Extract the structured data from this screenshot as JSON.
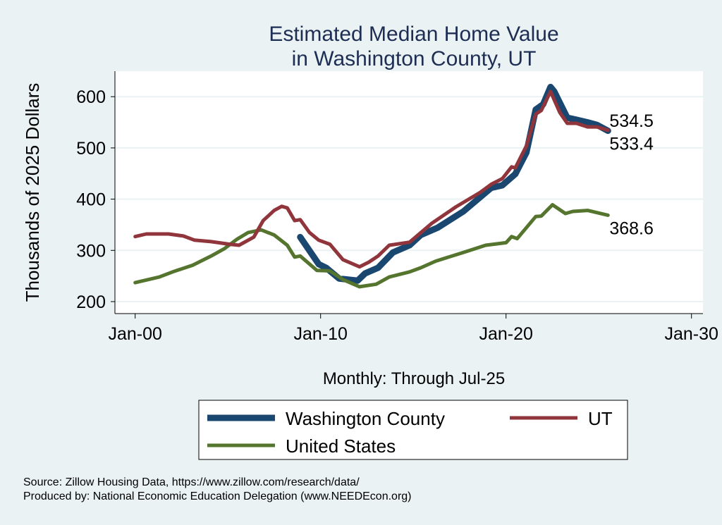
{
  "chart_data": {
    "type": "line",
    "title": [
      "Estimated Median Home Value",
      "in Washington County, UT"
    ],
    "xlabel": "Monthly: Through Jul-25",
    "ylabel": "Thousands of 2025 Dollars",
    "xlim": [
      1998.9,
      2030.6
    ],
    "ylim": [
      185,
      650
    ],
    "x_ticks": [
      {
        "value": 2000,
        "label": "Jan-00"
      },
      {
        "value": 2010,
        "label": "Jan-10"
      },
      {
        "value": 2020,
        "label": "Jan-20"
      },
      {
        "value": 2030,
        "label": "Jan-30"
      }
    ],
    "y_ticks": [
      {
        "value": 200,
        "label": "200"
      },
      {
        "value": 300,
        "label": "300"
      },
      {
        "value": 400,
        "label": "400"
      },
      {
        "value": 500,
        "label": "500"
      },
      {
        "value": 600,
        "label": "600"
      }
    ],
    "grid": true,
    "legend_position": "bottom",
    "series": [
      {
        "name": "Washington County",
        "color": "#1a476f",
        "width": 9,
        "end_label": "533.4",
        "points": [
          [
            2008.9,
            326
          ],
          [
            2009.9,
            273
          ],
          [
            2010.3,
            266
          ],
          [
            2011.0,
            245
          ],
          [
            2012.0,
            241
          ],
          [
            2012.4,
            255
          ],
          [
            2013.1,
            266
          ],
          [
            2013.9,
            296
          ],
          [
            2014.8,
            310
          ],
          [
            2015.4,
            330
          ],
          [
            2016.3,
            344
          ],
          [
            2017.7,
            376
          ],
          [
            2019.2,
            422
          ],
          [
            2019.8,
            427
          ],
          [
            2020.5,
            449
          ],
          [
            2021.1,
            491
          ],
          [
            2021.6,
            575
          ],
          [
            2022.0,
            585
          ],
          [
            2022.4,
            619
          ],
          [
            2022.6,
            610
          ],
          [
            2023.3,
            559
          ],
          [
            2023.8,
            555
          ],
          [
            2024.4,
            550
          ],
          [
            2024.9,
            545
          ],
          [
            2025.5,
            533.4
          ]
        ]
      },
      {
        "name": "UT",
        "color": "#90353b",
        "width": 5,
        "end_label": "534.5",
        "points": [
          [
            2000.0,
            327
          ],
          [
            2000.6,
            332
          ],
          [
            2001.8,
            332
          ],
          [
            2002.6,
            328
          ],
          [
            2003.2,
            320
          ],
          [
            2004.1,
            317
          ],
          [
            2005.1,
            312
          ],
          [
            2005.6,
            310
          ],
          [
            2006.4,
            326
          ],
          [
            2006.9,
            358
          ],
          [
            2007.5,
            378
          ],
          [
            2007.9,
            386
          ],
          [
            2008.2,
            383
          ],
          [
            2008.6,
            358
          ],
          [
            2008.9,
            360
          ],
          [
            2009.4,
            335
          ],
          [
            2009.9,
            320
          ],
          [
            2010.5,
            312
          ],
          [
            2011.2,
            282
          ],
          [
            2012.1,
            268
          ],
          [
            2012.6,
            277
          ],
          [
            2013.1,
            289
          ],
          [
            2013.7,
            310
          ],
          [
            2014.8,
            316
          ],
          [
            2016.0,
            353
          ],
          [
            2017.3,
            385
          ],
          [
            2018.6,
            413
          ],
          [
            2019.2,
            429
          ],
          [
            2019.8,
            440
          ],
          [
            2020.3,
            463
          ],
          [
            2020.5,
            461
          ],
          [
            2021.1,
            504
          ],
          [
            2021.6,
            566
          ],
          [
            2021.9,
            573
          ],
          [
            2022.4,
            610
          ],
          [
            2022.9,
            569
          ],
          [
            2023.3,
            548
          ],
          [
            2023.8,
            548
          ],
          [
            2024.4,
            541
          ],
          [
            2024.9,
            541
          ],
          [
            2025.5,
            534.5
          ]
        ]
      },
      {
        "name": "United States",
        "color": "#55752f",
        "width": 5,
        "end_label": "368.6",
        "points": [
          [
            2000.0,
            237
          ],
          [
            2001.3,
            248
          ],
          [
            2002.1,
            259
          ],
          [
            2003.1,
            271
          ],
          [
            2004.1,
            289
          ],
          [
            2004.8,
            303
          ],
          [
            2005.5,
            322
          ],
          [
            2006.1,
            335
          ],
          [
            2006.8,
            340
          ],
          [
            2007.5,
            330
          ],
          [
            2008.2,
            310
          ],
          [
            2008.6,
            287
          ],
          [
            2008.9,
            289
          ],
          [
            2009.8,
            261
          ],
          [
            2010.5,
            260
          ],
          [
            2011.2,
            243
          ],
          [
            2012.1,
            229
          ],
          [
            2013.0,
            234
          ],
          [
            2013.7,
            248
          ],
          [
            2014.8,
            258
          ],
          [
            2015.4,
            266
          ],
          [
            2016.2,
            279
          ],
          [
            2017.7,
            296
          ],
          [
            2018.9,
            310
          ],
          [
            2020.0,
            315
          ],
          [
            2020.3,
            327
          ],
          [
            2020.6,
            323
          ],
          [
            2021.6,
            366
          ],
          [
            2021.9,
            367
          ],
          [
            2022.5,
            389
          ],
          [
            2023.2,
            372
          ],
          [
            2023.6,
            376
          ],
          [
            2024.4,
            378
          ],
          [
            2025.5,
            368.6
          ]
        ]
      }
    ]
  },
  "footer": {
    "source": "Source: Zillow Housing Data, https://www.zillow.com/research/data/",
    "produced": "Produced by: National Economic Education Delegation (www.NEEDEcon.org)"
  }
}
